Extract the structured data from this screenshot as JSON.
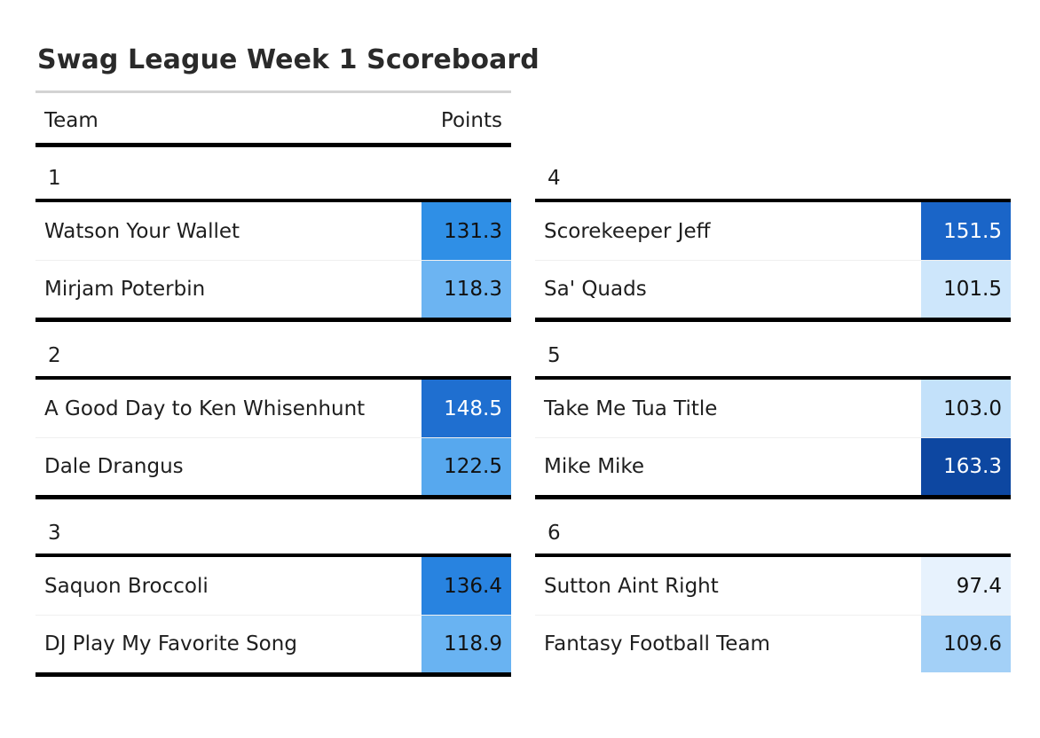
{
  "title": "Swag League Week 1 Scoreboard",
  "header": {
    "team": "Team",
    "points": "Points"
  },
  "groups": [
    {
      "label": "1",
      "rows": [
        {
          "team": "Watson Your Wallet",
          "points": "131.3",
          "bg": "#2f8fe6",
          "fg": "#111111"
        },
        {
          "team": "Mirjam Poterbin",
          "points": "118.3",
          "bg": "#6cb4f2",
          "fg": "#111111"
        }
      ]
    },
    {
      "label": "2",
      "rows": [
        {
          "team": "A Good Day to Ken Whisenhunt",
          "points": "148.5",
          "bg": "#1f6fd0",
          "fg": "#ffffff"
        },
        {
          "team": "Dale Drangus",
          "points": "122.5",
          "bg": "#57a8ee",
          "fg": "#111111"
        }
      ]
    },
    {
      "label": "3",
      "rows": [
        {
          "team": "Saquon Broccoli",
          "points": "136.4",
          "bg": "#2883e0",
          "fg": "#111111"
        },
        {
          "team": "DJ Play My Favorite Song",
          "points": "118.9",
          "bg": "#69b3f2",
          "fg": "#111111"
        }
      ]
    },
    {
      "label": "4",
      "rows": [
        {
          "team": "Scorekeeper Jeff",
          "points": "151.5",
          "bg": "#1a65c8",
          "fg": "#ffffff"
        },
        {
          "team": "Sa' Quads",
          "points": "101.5",
          "bg": "#cde6fb",
          "fg": "#111111"
        }
      ]
    },
    {
      "label": "5",
      "rows": [
        {
          "team": "Take Me Tua Title",
          "points": "103.0",
          "bg": "#c3e1fa",
          "fg": "#111111"
        },
        {
          "team": "Mike Mike",
          "points": "163.3",
          "bg": "#0d47a1",
          "fg": "#ffffff"
        }
      ]
    },
    {
      "label": "6",
      "rows": [
        {
          "team": "Sutton Aint Right",
          "points": "97.4",
          "bg": "#e7f2fd",
          "fg": "#111111"
        },
        {
          "team": "Fantasy Football Team",
          "points": "109.6",
          "bg": "#a3d0f7",
          "fg": "#111111"
        }
      ]
    }
  ]
}
